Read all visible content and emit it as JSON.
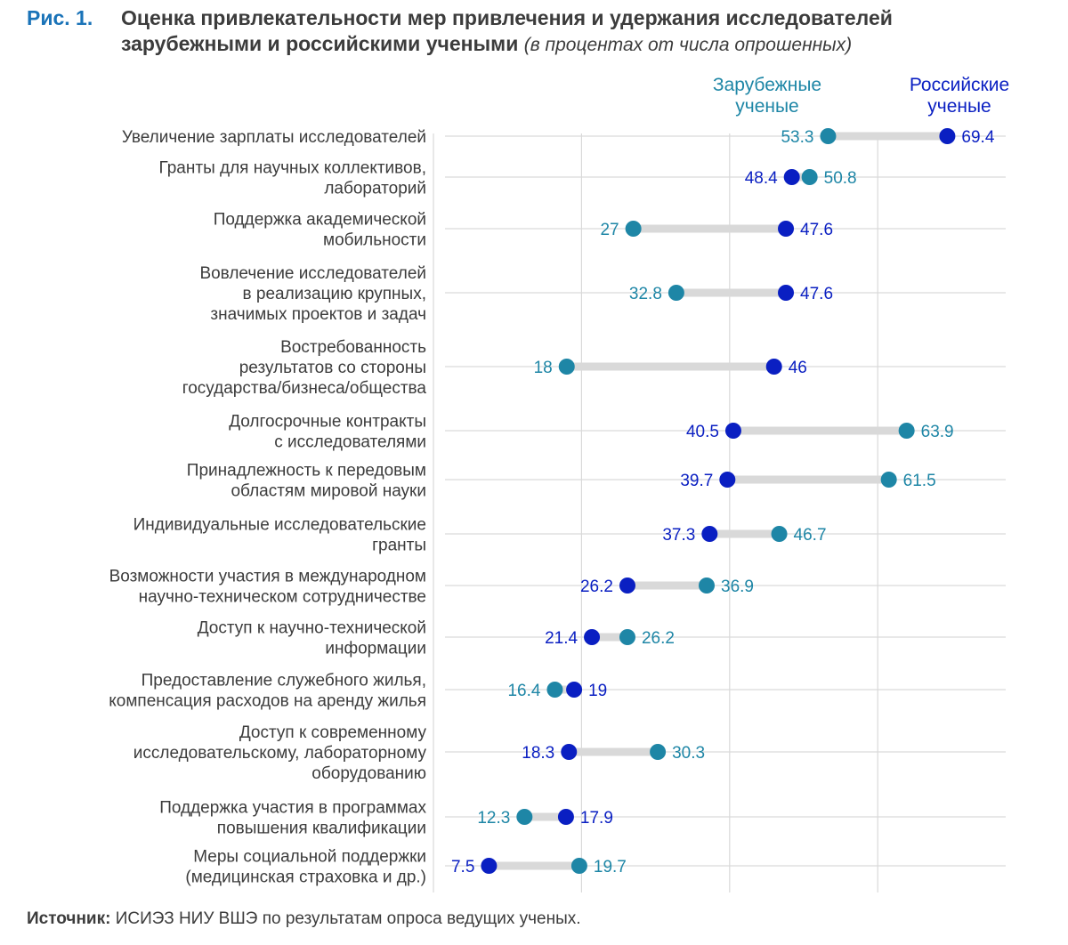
{
  "title": {
    "fig_number": "Рис. 1.",
    "line1": "Оценка привлекательности мер привлечения и удержания исследователей",
    "line2": "зарубежными и российскими учеными",
    "unit_note": "(в процентах от числа опрошенных)"
  },
  "colors": {
    "foreign": "#1e86a6",
    "russian": "#0a1fc2",
    "connector": "#d9d9d9",
    "grid": "#d9d9d9",
    "label": "#3c3c3c"
  },
  "chart_data": {
    "type": "dumbbell",
    "xlim": [
      0,
      75
    ],
    "grid_x": [
      0,
      20,
      40,
      60
    ],
    "legend_position": "top-right",
    "series": [
      {
        "key": "foreign",
        "name": "Зарубежные ученые",
        "name_lines": [
          "Зарубежные",
          "ученые"
        ]
      },
      {
        "key": "russian",
        "name": "Российские ученые",
        "name_lines": [
          "Российские",
          "ученые"
        ]
      }
    ],
    "categories": [
      {
        "label_lines": [
          "Увеличение зарплаты исследователей"
        ],
        "foreign": 53.3,
        "russian": 69.4
      },
      {
        "label_lines": [
          "Гранты для научных коллективов,",
          "лабораторий"
        ],
        "foreign": 50.8,
        "russian": 48.4
      },
      {
        "label_lines": [
          "Поддержка академической",
          "мобильности"
        ],
        "foreign": 27,
        "russian": 47.6
      },
      {
        "label_lines": [
          "Вовлечение исследователей",
          "в реализацию крупных,",
          "значимых проектов и задач"
        ],
        "foreign": 32.8,
        "russian": 47.6
      },
      {
        "label_lines": [
          "Востребованность",
          "результатов со стороны",
          "государства/бизнеса/общества"
        ],
        "foreign": 18,
        "russian": 46
      },
      {
        "label_lines": [
          "Долгосрочные контракты",
          "с исследователями"
        ],
        "foreign": 63.9,
        "russian": 40.5
      },
      {
        "label_lines": [
          "Принадлежность к передовым",
          "областям мировой науки"
        ],
        "foreign": 61.5,
        "russian": 39.7
      },
      {
        "label_lines": [
          "Индивидуальные исследовательские",
          "гранты"
        ],
        "foreign": 46.7,
        "russian": 37.3
      },
      {
        "label_lines": [
          "Возможности участия в международном",
          "научно-техническом сотрудничестве"
        ],
        "foreign": 36.9,
        "russian": 26.2
      },
      {
        "label_lines": [
          "Доступ к научно-технической",
          "информации"
        ],
        "foreign": 26.2,
        "russian": 21.4
      },
      {
        "label_lines": [
          "Предоставление служебного жилья,",
          "компенсация расходов на аренду жилья"
        ],
        "foreign": 16.4,
        "russian": 19
      },
      {
        "label_lines": [
          "Доступ к современному",
          "исследовательскому, лабораторному",
          "оборудованию"
        ],
        "foreign": 30.3,
        "russian": 18.3
      },
      {
        "label_lines": [
          "Поддержка участия в программах",
          "повышения квалификации"
        ],
        "foreign": 12.3,
        "russian": 17.9
      },
      {
        "label_lines": [
          "Меры социальной поддержки",
          "(медицинская страховка и др.)"
        ],
        "foreign": 19.7,
        "russian": 7.5
      }
    ]
  },
  "source": {
    "label": "Источник:",
    "text": "ИСИЭЗ НИУ ВШЭ по результатам опроса ведущих ученых."
  }
}
